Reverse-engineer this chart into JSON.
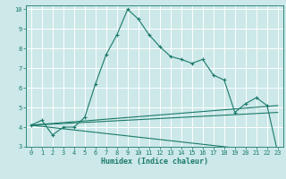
{
  "title": "",
  "xlabel": "Humidex (Indice chaleur)",
  "bg_color": "#cce8e8",
  "grid_color": "#ffffff",
  "line_color": "#1a7a6a",
  "xlim": [
    -0.5,
    23.5
  ],
  "ylim": [
    3,
    10.2
  ],
  "xticks": [
    0,
    1,
    2,
    3,
    4,
    5,
    6,
    7,
    8,
    9,
    10,
    11,
    12,
    13,
    14,
    15,
    16,
    17,
    18,
    19,
    20,
    21,
    22,
    23
  ],
  "yticks": [
    3,
    4,
    5,
    6,
    7,
    8,
    9,
    10
  ],
  "series": [
    {
      "x": [
        0,
        1,
        2,
        3,
        4,
        5,
        6,
        7,
        8,
        9,
        10,
        11,
        12,
        13,
        14,
        15,
        16,
        17,
        18,
        19,
        20,
        21,
        22,
        23
      ],
      "y": [
        4.1,
        4.35,
        3.6,
        4.0,
        4.0,
        4.5,
        6.2,
        7.7,
        8.7,
        10.0,
        9.5,
        8.7,
        8.1,
        7.6,
        7.45,
        7.25,
        7.45,
        6.65,
        6.4,
        4.75,
        5.2,
        5.5,
        5.1,
        2.7
      ],
      "marker": true
    },
    {
      "x": [
        0,
        23
      ],
      "y": [
        4.1,
        4.75
      ],
      "marker": false
    },
    {
      "x": [
        0,
        23
      ],
      "y": [
        4.1,
        5.1
      ],
      "marker": false
    },
    {
      "x": [
        0,
        23
      ],
      "y": [
        4.1,
        2.7
      ],
      "marker": false
    }
  ]
}
